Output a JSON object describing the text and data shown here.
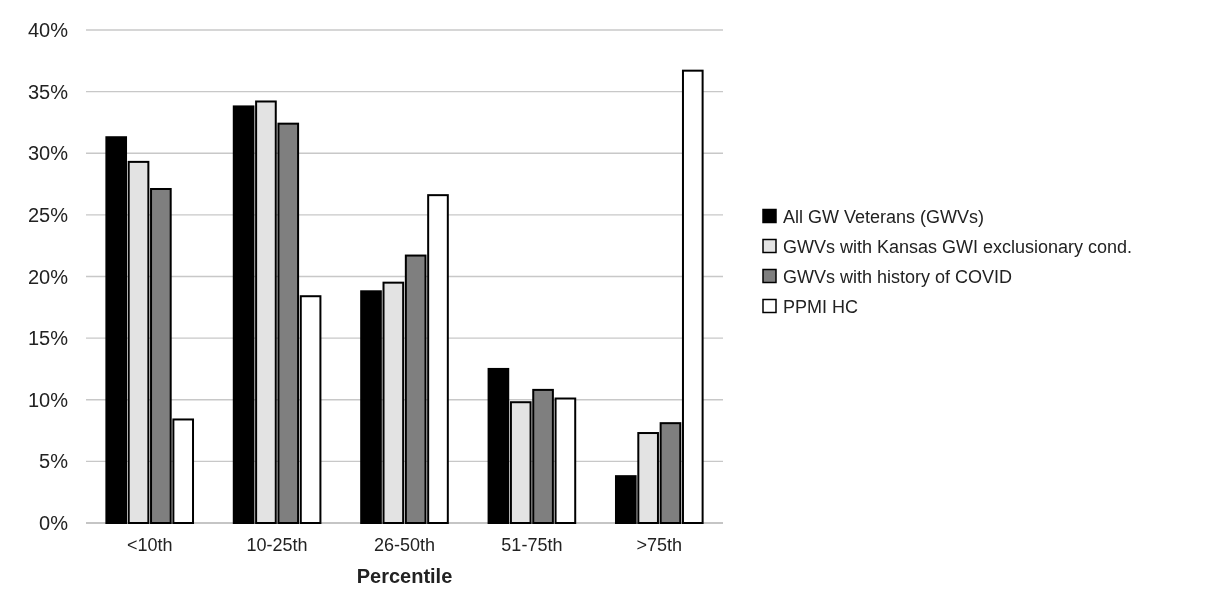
{
  "chart_data": {
    "type": "bar",
    "xlabel": "Percentile",
    "categories": [
      "<10th",
      "10-25th",
      "26-50th",
      "51-75th",
      ">75th"
    ],
    "series": [
      {
        "name": "All GW Veterans (GWVs)",
        "color": "#000000",
        "values": [
          31.3,
          33.8,
          18.8,
          12.5,
          3.8
        ]
      },
      {
        "name": "GWVs with Kansas GWI exclusionary cond.",
        "color": "#e3e3e3",
        "values": [
          29.3,
          34.2,
          19.5,
          9.8,
          7.3
        ]
      },
      {
        "name": "GWVs with history of COVID",
        "color": "#7f7f7f",
        "values": [
          27.1,
          32.4,
          21.7,
          10.8,
          8.1
        ]
      },
      {
        "name": "PPMI HC",
        "color": "#ffffff",
        "values": [
          8.4,
          18.4,
          26.6,
          10.1,
          36.7
        ]
      }
    ],
    "ylim": [
      0,
      40
    ],
    "yticks": [
      {
        "value": 0,
        "label": "0%"
      },
      {
        "value": 5,
        "label": "5%"
      },
      {
        "value": 10,
        "label": "10%"
      },
      {
        "value": 15,
        "label": "15%"
      },
      {
        "value": 20,
        "label": "20%"
      },
      {
        "value": 25,
        "label": "25%"
      },
      {
        "value": 30,
        "label": "30%"
      },
      {
        "value": 35,
        "label": "35%"
      },
      {
        "value": 40,
        "label": "40%"
      }
    ],
    "grid": "y",
    "legend": "right"
  }
}
